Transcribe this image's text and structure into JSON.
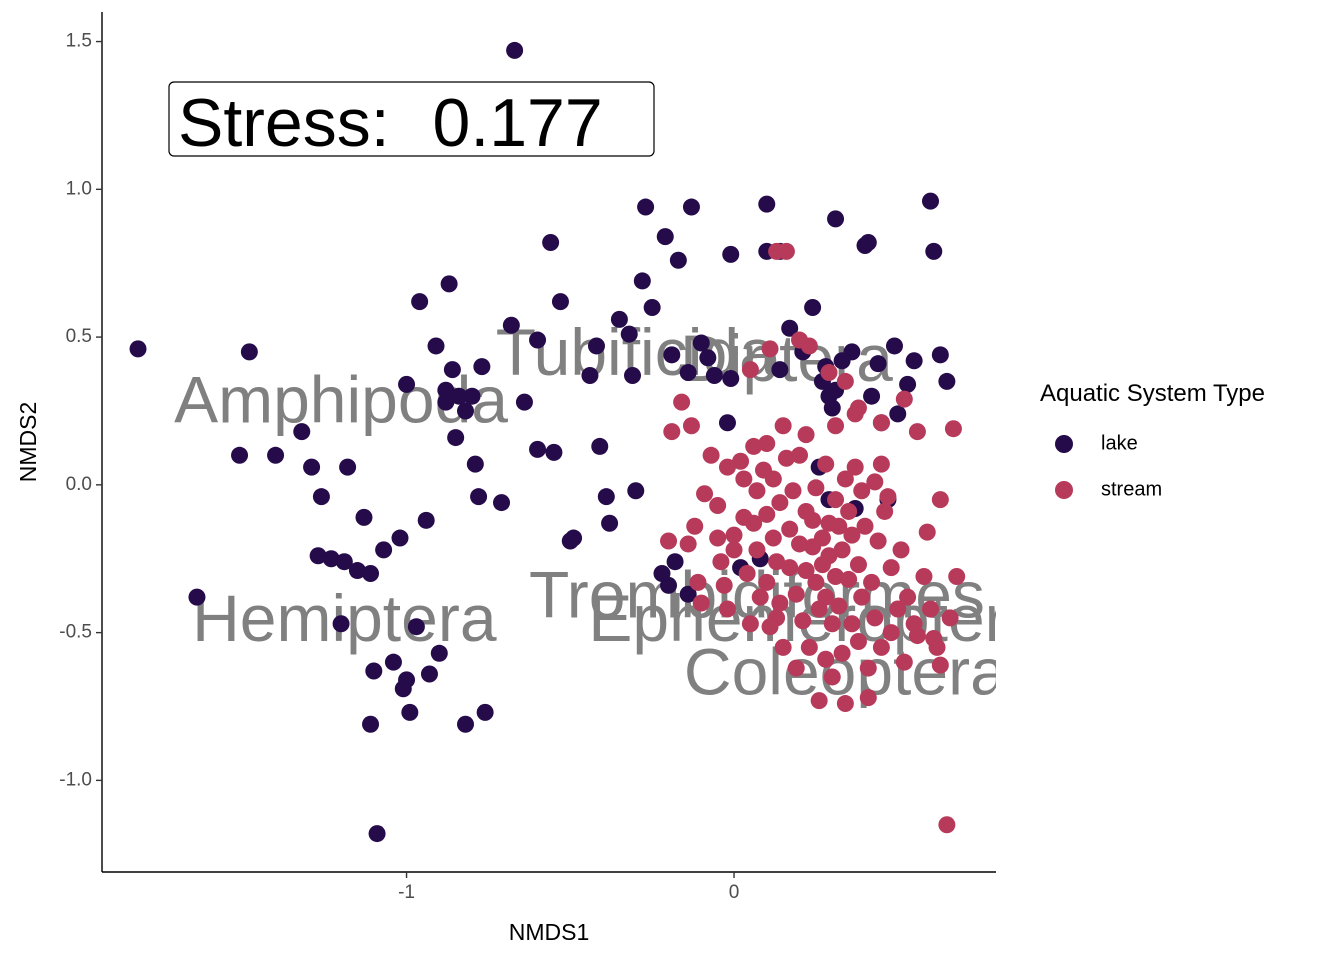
{
  "chart_data": {
    "type": "scatter",
    "xlabel": "NMDS1",
    "ylabel": "NMDS2",
    "xlim": [
      -1.93,
      0.8
    ],
    "ylim": [
      -1.31,
      1.6
    ],
    "x_ticks": [
      {
        "value": -1,
        "label": "-1"
      },
      {
        "value": 0,
        "label": "0"
      }
    ],
    "y_ticks": [
      {
        "value": 1.5,
        "label": "1.5"
      },
      {
        "value": 1.0,
        "label": "1.0"
      },
      {
        "value": 0.5,
        "label": "0.5"
      },
      {
        "value": 0.0,
        "label": "0.0"
      },
      {
        "value": -0.5,
        "label": "-0.5"
      },
      {
        "value": -1.0,
        "label": "-1.0"
      }
    ],
    "grid": false,
    "annotation": {
      "label": "Stress:",
      "value": "0.177"
    },
    "legend": {
      "title": "Aquatic System Type",
      "position": "right",
      "entries": [
        {
          "name": "lake",
          "color": "#250b4a"
        },
        {
          "name": "stream",
          "color": "#b83a5a"
        }
      ]
    },
    "taxa_labels": [
      {
        "text": "Amphipoda",
        "x": -1.2,
        "y": 0.27
      },
      {
        "text": "Tubificida",
        "x": -0.3,
        "y": 0.43
      },
      {
        "text": "Diptera",
        "x": 0.16,
        "y": 0.41
      },
      {
        "text": "Hemiptera",
        "x": -1.19,
        "y": -0.47
      },
      {
        "text": "Trombidiformes",
        "x": 0.07,
        "y": -0.39
      },
      {
        "text": "Ephemeroptera",
        "x": 0.25,
        "y": -0.47
      },
      {
        "text": "Coleoptera",
        "x": 0.34,
        "y": -0.65
      }
    ],
    "series": [
      {
        "name": "lake",
        "color": "#250b4a",
        "points": [
          [
            -1.82,
            0.46
          ],
          [
            -1.48,
            0.45
          ],
          [
            -1.51,
            0.1
          ],
          [
            -1.4,
            0.1
          ],
          [
            -1.32,
            0.18
          ],
          [
            -1.29,
            0.06
          ],
          [
            -1.26,
            -0.04
          ],
          [
            -1.23,
            -0.25
          ],
          [
            -1.19,
            -0.26
          ],
          [
            -1.18,
            0.06
          ],
          [
            -1.13,
            -0.11
          ],
          [
            -1.11,
            -0.3
          ],
          [
            -1.07,
            -0.22
          ],
          [
            -1.02,
            -0.18
          ],
          [
            -1.0,
            0.34
          ],
          [
            -0.96,
            0.62
          ],
          [
            -0.94,
            -0.12
          ],
          [
            -0.91,
            0.47
          ],
          [
            -0.88,
            0.32
          ],
          [
            -0.88,
            0.28
          ],
          [
            -0.87,
            0.68
          ],
          [
            -0.86,
            0.39
          ],
          [
            -0.85,
            0.16
          ],
          [
            -0.84,
            0.3
          ],
          [
            -0.82,
            0.25
          ],
          [
            -0.8,
            0.3
          ],
          [
            -0.79,
            0.07
          ],
          [
            -0.78,
            -0.04
          ],
          [
            -0.77,
            0.4
          ],
          [
            -0.71,
            -0.06
          ],
          [
            -0.68,
            0.54
          ],
          [
            -0.67,
            1.47
          ],
          [
            -0.64,
            0.28
          ],
          [
            -0.6,
            0.49
          ],
          [
            -0.6,
            0.12
          ],
          [
            -0.56,
            0.82
          ],
          [
            -0.55,
            0.11
          ],
          [
            -0.53,
            0.62
          ],
          [
            -0.49,
            -0.18
          ],
          [
            -0.44,
            0.37
          ],
          [
            -0.42,
            0.47
          ],
          [
            -0.41,
            0.13
          ],
          [
            -0.39,
            -0.04
          ],
          [
            -0.38,
            -0.13
          ],
          [
            -0.35,
            0.56
          ],
          [
            -0.32,
            0.51
          ],
          [
            -0.31,
            0.37
          ],
          [
            -0.3,
            -0.02
          ],
          [
            -0.28,
            0.69
          ],
          [
            -0.27,
            0.94
          ],
          [
            -0.25,
            0.6
          ],
          [
            -0.21,
            0.84
          ],
          [
            -0.19,
            0.44
          ],
          [
            -0.17,
            0.76
          ],
          [
            -0.14,
            0.38
          ],
          [
            -0.13,
            0.94
          ],
          [
            -0.1,
            0.48
          ],
          [
            -0.08,
            0.43
          ],
          [
            -0.06,
            0.37
          ],
          [
            -0.02,
            0.21
          ],
          [
            -0.01,
            0.78
          ],
          [
            -0.01,
            0.36
          ],
          [
            0.1,
            0.79
          ],
          [
            0.1,
            0.95
          ],
          [
            0.14,
            0.79
          ],
          [
            0.14,
            0.39
          ],
          [
            0.17,
            0.53
          ],
          [
            0.21,
            0.45
          ],
          [
            0.24,
            0.6
          ],
          [
            0.27,
            0.35
          ],
          [
            0.28,
            0.4
          ],
          [
            0.29,
            0.3
          ],
          [
            0.3,
            0.26
          ],
          [
            0.31,
            0.9
          ],
          [
            0.31,
            0.32
          ],
          [
            0.33,
            0.42
          ],
          [
            0.36,
            0.45
          ],
          [
            0.4,
            0.81
          ],
          [
            0.41,
            0.82
          ],
          [
            0.42,
            0.3
          ],
          [
            0.44,
            0.41
          ],
          [
            0.49,
            0.47
          ],
          [
            0.5,
            0.24
          ],
          [
            0.53,
            0.34
          ],
          [
            0.55,
            0.42
          ],
          [
            0.6,
            0.96
          ],
          [
            0.61,
            0.79
          ],
          [
            0.63,
            0.44
          ],
          [
            0.65,
            0.35
          ],
          [
            0.26,
            0.06
          ],
          [
            0.29,
            -0.05
          ],
          [
            0.37,
            -0.08
          ],
          [
            0.47,
            -0.05
          ],
          [
            0.45,
            0.21
          ],
          [
            0.08,
            -0.25
          ],
          [
            0.02,
            -0.28
          ],
          [
            -0.18,
            -0.26
          ],
          [
            -0.2,
            -0.34
          ],
          [
            -0.22,
            -0.3
          ],
          [
            -0.14,
            -0.37
          ],
          [
            -0.5,
            -0.19
          ],
          [
            -1.64,
            -0.38
          ],
          [
            -1.27,
            -0.24
          ],
          [
            -1.2,
            -0.47
          ],
          [
            -1.15,
            -0.29
          ],
          [
            -1.11,
            -0.81
          ],
          [
            -1.1,
            -0.63
          ],
          [
            -1.04,
            -0.6
          ],
          [
            -1.01,
            -0.69
          ],
          [
            -1.0,
            -0.66
          ],
          [
            -0.99,
            -0.77
          ],
          [
            -0.97,
            -0.48
          ],
          [
            -0.93,
            -0.64
          ],
          [
            -0.9,
            -0.57
          ],
          [
            -0.82,
            -0.81
          ],
          [
            -0.76,
            -0.77
          ],
          [
            -1.09,
            -1.18
          ]
        ]
      },
      {
        "name": "stream",
        "color": "#b83a5a",
        "points": [
          [
            -0.19,
            0.18
          ],
          [
            -0.13,
            0.2
          ],
          [
            -0.16,
            0.28
          ],
          [
            -0.09,
            -0.03
          ],
          [
            -0.07,
            0.1
          ],
          [
            -0.05,
            -0.07
          ],
          [
            -0.05,
            -0.18
          ],
          [
            -0.04,
            -0.26
          ],
          [
            -0.03,
            -0.34
          ],
          [
            -0.02,
            0.06
          ],
          [
            -0.02,
            -0.42
          ],
          [
            0.0,
            -0.17
          ],
          [
            0.02,
            0.08
          ],
          [
            0.03,
            0.02
          ],
          [
            0.03,
            -0.11
          ],
          [
            0.04,
            -0.3
          ],
          [
            0.05,
            0.39
          ],
          [
            0.05,
            -0.47
          ],
          [
            0.06,
            0.13
          ],
          [
            0.07,
            -0.02
          ],
          [
            0.07,
            -0.22
          ],
          [
            0.08,
            -0.38
          ],
          [
            0.09,
            0.05
          ],
          [
            0.1,
            0.14
          ],
          [
            0.1,
            -0.1
          ],
          [
            0.1,
            -0.33
          ],
          [
            0.11,
            -0.48
          ],
          [
            0.12,
            0.02
          ],
          [
            0.12,
            -0.18
          ],
          [
            0.13,
            -0.26
          ],
          [
            0.14,
            -0.06
          ],
          [
            0.14,
            -0.4
          ],
          [
            0.15,
            0.2
          ],
          [
            0.15,
            -0.55
          ],
          [
            0.16,
            0.09
          ],
          [
            0.17,
            -0.15
          ],
          [
            0.17,
            -0.28
          ],
          [
            0.18,
            -0.02
          ],
          [
            0.19,
            -0.37
          ],
          [
            0.19,
            -0.62
          ],
          [
            0.2,
            0.1
          ],
          [
            0.2,
            -0.2
          ],
          [
            0.21,
            -0.46
          ],
          [
            0.22,
            -0.09
          ],
          [
            0.22,
            -0.29
          ],
          [
            0.22,
            0.17
          ],
          [
            0.23,
            -0.55
          ],
          [
            0.24,
            -0.12
          ],
          [
            0.24,
            -0.21
          ],
          [
            0.25,
            -0.33
          ],
          [
            0.25,
            -0.01
          ],
          [
            0.26,
            -0.42
          ],
          [
            0.26,
            -0.73
          ],
          [
            0.27,
            -0.18
          ],
          [
            0.27,
            -0.27
          ],
          [
            0.28,
            0.07
          ],
          [
            0.28,
            -0.38
          ],
          [
            0.28,
            -0.59
          ],
          [
            0.29,
            -0.13
          ],
          [
            0.29,
            -0.24
          ],
          [
            0.3,
            -0.47
          ],
          [
            0.3,
            -0.65
          ],
          [
            0.31,
            0.2
          ],
          [
            0.31,
            -0.05
          ],
          [
            0.31,
            -0.31
          ],
          [
            0.32,
            -0.14
          ],
          [
            0.32,
            -0.41
          ],
          [
            0.33,
            -0.22
          ],
          [
            0.33,
            -0.57
          ],
          [
            0.34,
            0.02
          ],
          [
            0.34,
            -0.74
          ],
          [
            0.35,
            -0.32
          ],
          [
            0.35,
            -0.09
          ],
          [
            0.36,
            -0.47
          ],
          [
            0.36,
            -0.17
          ],
          [
            0.37,
            0.24
          ],
          [
            0.37,
            0.06
          ],
          [
            0.38,
            -0.27
          ],
          [
            0.38,
            -0.53
          ],
          [
            0.39,
            -0.38
          ],
          [
            0.39,
            -0.02
          ],
          [
            0.4,
            -0.14
          ],
          [
            0.41,
            -0.62
          ],
          [
            0.41,
            -0.72
          ],
          [
            0.42,
            -0.33
          ],
          [
            0.43,
            0.01
          ],
          [
            0.43,
            -0.45
          ],
          [
            0.44,
            -0.19
          ],
          [
            0.45,
            -0.55
          ],
          [
            0.45,
            0.07
          ],
          [
            0.46,
            -0.09
          ],
          [
            0.47,
            -0.04
          ],
          [
            0.48,
            -0.28
          ],
          [
            0.48,
            -0.5
          ],
          [
            0.5,
            -0.42
          ],
          [
            0.51,
            -0.22
          ],
          [
            0.52,
            -0.6
          ],
          [
            0.53,
            -0.38
          ],
          [
            0.55,
            -0.47
          ],
          [
            0.56,
            -0.51
          ],
          [
            0.58,
            -0.31
          ],
          [
            0.59,
            -0.16
          ],
          [
            0.6,
            -0.42
          ],
          [
            0.61,
            -0.52
          ],
          [
            0.62,
            -0.55
          ],
          [
            0.63,
            -0.61
          ],
          [
            0.63,
            -0.05
          ],
          [
            0.66,
            -0.45
          ],
          [
            0.67,
            0.19
          ],
          [
            0.68,
            -0.31
          ],
          [
            0.11,
            0.46
          ],
          [
            0.13,
            0.79
          ],
          [
            0.16,
            0.79
          ],
          [
            0.2,
            0.49
          ],
          [
            0.23,
            0.47
          ],
          [
            0.29,
            0.38
          ],
          [
            0.34,
            0.35
          ],
          [
            0.38,
            0.26
          ],
          [
            0.45,
            0.21
          ],
          [
            0.52,
            0.29
          ],
          [
            0.56,
            0.18
          ],
          [
            -0.2,
            -0.19
          ],
          [
            -0.14,
            -0.2
          ],
          [
            -0.11,
            -0.33
          ],
          [
            -0.1,
            -0.4
          ],
          [
            -0.12,
            -0.14
          ],
          [
            0.65,
            -1.15
          ],
          [
            0.0,
            -0.22
          ],
          [
            0.06,
            -0.13
          ],
          [
            0.13,
            -0.45
          ]
        ]
      }
    ]
  }
}
